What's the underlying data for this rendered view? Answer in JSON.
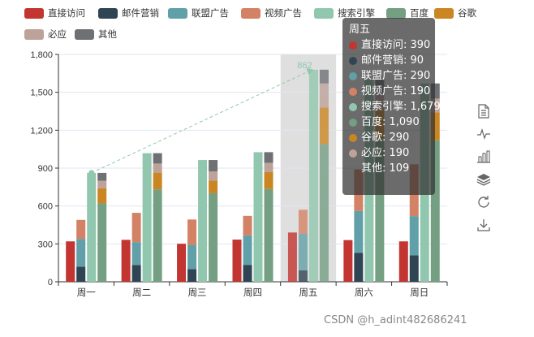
{
  "chart_data": {
    "type": "bar",
    "categories": [
      "周一",
      "周二",
      "周三",
      "周四",
      "周五",
      "周六",
      "周日"
    ],
    "ylim": [
      0,
      1800
    ],
    "yticks": [
      0,
      300,
      600,
      900,
      1200,
      1500,
      1800
    ],
    "ytick_labels": [
      "0",
      "300",
      "600",
      "900",
      "1,200",
      "1,500",
      "1,800"
    ],
    "highlighted_category": "周五",
    "series": [
      {
        "name": "直接访问",
        "color": "#c23531",
        "stack": null,
        "values": [
          320,
          332,
          301,
          334,
          390,
          330,
          320
        ]
      },
      {
        "name": "邮件营销",
        "color": "#2f4554",
        "stack": "广告",
        "values": [
          120,
          132,
          101,
          134,
          90,
          230,
          210
        ]
      },
      {
        "name": "联盟广告",
        "color": "#61a0a8",
        "stack": "广告",
        "values": [
          220,
          182,
          191,
          234,
          290,
          330,
          310
        ]
      },
      {
        "name": "视频广告",
        "color": "#d48265",
        "stack": "广告",
        "values": [
          150,
          232,
          201,
          154,
          190,
          330,
          410
        ]
      },
      {
        "name": "搜索引擎",
        "color": "#91c7ae",
        "stack": null,
        "values": [
          862,
          1018,
          964,
          1026,
          1679,
          1600,
          1570
        ]
      },
      {
        "name": "百度",
        "color": "#749f83",
        "stack": "搜索引擎",
        "values": [
          620,
          732,
          701,
          734,
          1090,
          1130,
          1120
        ]
      },
      {
        "name": "谷歌",
        "color": "#ca8622",
        "stack": "搜索引擎",
        "values": [
          120,
          132,
          101,
          134,
          290,
          230,
          220
        ]
      },
      {
        "name": "必应",
        "color": "#bda29a",
        "stack": "搜索引擎",
        "values": [
          60,
          72,
          71,
          74,
          190,
          130,
          110
        ]
      },
      {
        "name": "其他",
        "color": "#6e7074",
        "stack": "搜索引擎",
        "values": [
          62,
          82,
          91,
          84,
          109,
          110,
          120
        ]
      }
    ],
    "markline": {
      "series": "搜索引擎",
      "from": {
        "category": "周一",
        "value": 862
      },
      "to": {
        "category": "周五",
        "value": 1679
      },
      "label": "862"
    }
  },
  "tooltip": {
    "title": "周五",
    "rows": [
      {
        "label": "直接访问: 390",
        "color": "#c23531"
      },
      {
        "label": "邮件营销: 90",
        "color": "#2f4554"
      },
      {
        "label": "联盟广告: 290",
        "color": "#61a0a8"
      },
      {
        "label": "视频广告: 190",
        "color": "#d48265"
      },
      {
        "label": "搜索引擎: 1,679",
        "color": "#91c7ae"
      },
      {
        "label": "百度: 1,090",
        "color": "#749f83"
      },
      {
        "label": "谷歌: 290",
        "color": "#ca8622"
      },
      {
        "label": "必应: 190",
        "color": "#bda29a"
      },
      {
        "label": "其他: 109",
        "color": ""
      }
    ]
  },
  "toolbox": [
    {
      "name": "data-view-icon"
    },
    {
      "name": "line-chart-icon"
    },
    {
      "name": "bar-chart-icon"
    },
    {
      "name": "stack-icon"
    },
    {
      "name": "restore-icon"
    },
    {
      "name": "save-image-icon"
    }
  ],
  "watermark": "CSDN @h_adint482686241"
}
